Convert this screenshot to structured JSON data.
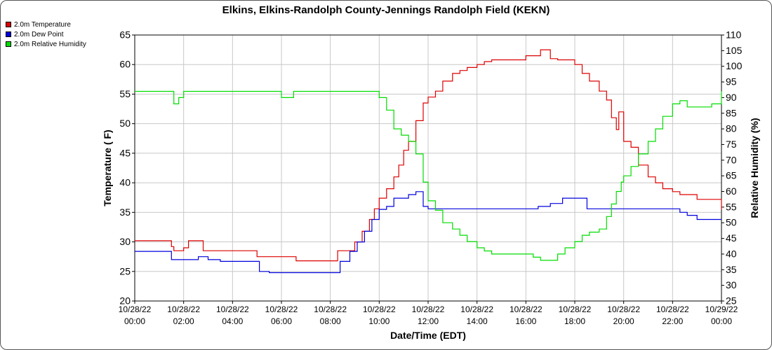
{
  "chart_data": {
    "type": "line",
    "title": "Elkins, Elkins-Randolph County-Jennings Randolph Field (KEKN)",
    "xlabel": "Date/Time (EDT)",
    "ylabel_left": "Temperature ( F)",
    "ylabel_right": "Relative Humidity (%)",
    "ylim_left": [
      20,
      65
    ],
    "ylim_right": [
      25,
      110
    ],
    "xlim_hours": [
      0,
      24
    ],
    "x_tick_labels": [
      [
        "10/28/22",
        "00:00"
      ],
      [
        "10/28/22",
        "02:00"
      ],
      [
        "10/28/22",
        "04:00"
      ],
      [
        "10/28/22",
        "06:00"
      ],
      [
        "10/28/22",
        "08:00"
      ],
      [
        "10/28/22",
        "10:00"
      ],
      [
        "10/28/22",
        "12:00"
      ],
      [
        "10/28/22",
        "14:00"
      ],
      [
        "10/28/22",
        "16:00"
      ],
      [
        "10/28/22",
        "18:00"
      ],
      [
        "10/28/22",
        "20:00"
      ],
      [
        "10/28/22",
        "22:00"
      ],
      [
        "10/29/22",
        "00:00"
      ]
    ],
    "y_left_ticks": [
      "20",
      "25",
      "30",
      "35",
      "40",
      "45",
      "50",
      "55",
      "60",
      "65"
    ],
    "y_right_ticks": [
      "25",
      "30",
      "35",
      "40",
      "45",
      "50",
      "55",
      "60",
      "65",
      "70",
      "75",
      "80",
      "85",
      "90",
      "95",
      "100",
      "105",
      "110"
    ],
    "grid": true,
    "legend_position": "top-left",
    "series": [
      {
        "name": "2.0m Temperature",
        "color": "#dd0000",
        "axis": "left",
        "x": [
          0,
          0.5,
          1,
          1.4,
          1.5,
          1.6,
          1.8,
          2,
          2.2,
          2.5,
          2.8,
          3,
          3.2,
          3.5,
          3.8,
          4,
          4.5,
          5,
          5.5,
          6,
          6.3,
          6.6,
          7,
          7.5,
          8,
          8.3,
          8.7,
          9,
          9.3,
          9.6,
          9.8,
          10,
          10.3,
          10.6,
          10.8,
          11,
          11.2,
          11.5,
          11.8,
          12,
          12.3,
          12.6,
          13,
          13.3,
          13.6,
          14,
          14.3,
          14.6,
          15,
          15.3,
          15.6,
          16,
          16.3,
          16.6,
          17,
          17.3,
          17.6,
          18,
          18.3,
          18.6,
          19,
          19.3,
          19.5,
          19.7,
          19.8,
          20,
          20.3,
          20.6,
          21,
          21.3,
          21.6,
          22,
          22.3,
          22.6,
          23,
          23.3,
          23.6,
          24
        ],
        "values": [
          30.2,
          30.2,
          30.2,
          30.2,
          29.2,
          28.5,
          28.5,
          29,
          30.2,
          30.2,
          28.5,
          28.5,
          28.5,
          28.5,
          28.5,
          28.5,
          28.5,
          27.5,
          27.5,
          27.5,
          27.5,
          26.8,
          26.8,
          26.8,
          26.8,
          28.5,
          28.5,
          30,
          31.8,
          33.8,
          35.6,
          37.4,
          39,
          41,
          43,
          45.5,
          47,
          50.5,
          53.5,
          54.5,
          55.5,
          57.2,
          58.5,
          59,
          59.5,
          60,
          60.5,
          60.8,
          60.8,
          60.8,
          60.8,
          61.5,
          61.5,
          62.5,
          61,
          60.8,
          60.8,
          60,
          58.5,
          57.2,
          55.5,
          54,
          51,
          49,
          52,
          47,
          46,
          43,
          41,
          40,
          39,
          38.5,
          38,
          38,
          37.2,
          37.2,
          37.2,
          35.5
        ]
      },
      {
        "name": "2.0m Dew Point",
        "color": "#0000dd",
        "axis": "left",
        "x": [
          0,
          0.5,
          1,
          1.4,
          1.5,
          1.7,
          2,
          2.3,
          2.6,
          3,
          3.5,
          4,
          4.5,
          4.9,
          5.1,
          5.5,
          6,
          6.5,
          7,
          7.5,
          8,
          8.4,
          8.8,
          9.1,
          9.4,
          9.7,
          10,
          10.3,
          10.6,
          10.9,
          11.2,
          11.5,
          11.8,
          12,
          12.5,
          13,
          13.5,
          14,
          14.5,
          15,
          15.5,
          16,
          16.5,
          17,
          17.5,
          18,
          18.5,
          19,
          19.5,
          20,
          20.5,
          21,
          21.5,
          22,
          22.3,
          22.6,
          23,
          23.5,
          24
        ],
        "values": [
          28.4,
          28.4,
          28.4,
          28.4,
          27,
          27,
          27,
          27,
          27.5,
          27,
          26.7,
          26.7,
          26.7,
          26.7,
          25,
          24.8,
          24.8,
          24.8,
          24.8,
          24.8,
          24.8,
          26.7,
          28.4,
          30,
          31.8,
          33.8,
          35.5,
          36,
          37.4,
          37.4,
          38,
          38.5,
          36,
          35.6,
          35.6,
          35.6,
          35.6,
          35.6,
          35.6,
          35.6,
          35.6,
          35.6,
          36,
          36.5,
          37.4,
          37.4,
          35.6,
          35.6,
          35.6,
          35.6,
          35.6,
          35.6,
          35.6,
          35.6,
          35,
          34.5,
          33.8,
          33.8,
          33.8
        ]
      },
      {
        "name": "2.0m Relative Humidity",
        "color": "#00dd00",
        "axis": "right",
        "x": [
          0,
          0.5,
          1,
          1.5,
          1.6,
          1.8,
          2,
          2.5,
          2.8,
          3,
          3.5,
          4,
          4.5,
          5,
          5.5,
          6,
          6.5,
          7,
          7.5,
          8,
          8.5,
          9,
          9.5,
          10,
          10.3,
          10.6,
          10.9,
          11.2,
          11.5,
          11.8,
          12,
          12.3,
          12.6,
          13,
          13.3,
          13.6,
          14,
          14.3,
          14.6,
          15,
          15.3,
          15.6,
          16,
          16.3,
          16.6,
          17,
          17.3,
          17.6,
          18,
          18.3,
          18.6,
          19,
          19.3,
          19.5,
          19.7,
          19.9,
          20,
          20.3,
          20.6,
          21,
          21.3,
          21.6,
          22,
          22.3,
          22.6,
          23,
          23.3,
          23.6,
          24
        ],
        "values": [
          92,
          92,
          92,
          92,
          88,
          90,
          92,
          92,
          92,
          92,
          92,
          92,
          92,
          92,
          92,
          90,
          92,
          92,
          92,
          92,
          92,
          92,
          92,
          90,
          86,
          80,
          78,
          76,
          72,
          63,
          57,
          54,
          50,
          48,
          46,
          44,
          42,
          41,
          40,
          40,
          40,
          40,
          40,
          39,
          38,
          38,
          40,
          42,
          44,
          46,
          47,
          48,
          52,
          56,
          60,
          63,
          65,
          68,
          72,
          76,
          80,
          84,
          88,
          89,
          87,
          87,
          87,
          88,
          92
        ]
      }
    ]
  }
}
